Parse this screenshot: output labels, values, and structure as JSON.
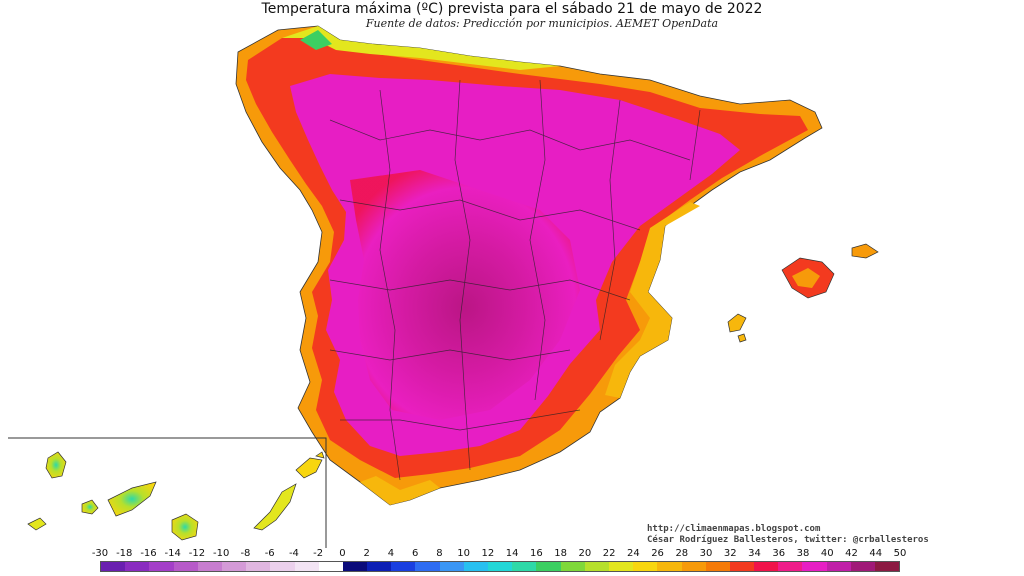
{
  "title": "Temperatura máxima (ºC) prevista para el sábado 21 de mayo de 2022",
  "subtitle": "Fuente de datos: Predicción por municipios. AEMET OpenData",
  "credits": {
    "url": "http://climaenmapas.blogspot.com",
    "author": "César Rodríguez Ballesteros, twitter: @crballesteros"
  },
  "legend": {
    "ticks": [
      "-30",
      "-18",
      "-16",
      "-14",
      "-12",
      "-10",
      "-8",
      "-6",
      "-4",
      "-2",
      "0",
      "2",
      "4",
      "6",
      "8",
      "10",
      "12",
      "14",
      "16",
      "18",
      "20",
      "22",
      "24",
      "26",
      "28",
      "30",
      "32",
      "34",
      "36",
      "38",
      "40",
      "42",
      "44",
      "50"
    ],
    "colors": [
      "#6a1fb0",
      "#8a2cc0",
      "#a43fc8",
      "#b75ac9",
      "#c77dcf",
      "#d49ad7",
      "#e0b6e0",
      "#ebd0ec",
      "#f3e4f4",
      "#ffffff",
      "#0b0b7a",
      "#0d1fb5",
      "#1a3fe0",
      "#2e6cf2",
      "#3a96f5",
      "#28c0f0",
      "#22d7d7",
      "#2ed9a8",
      "#3ccf62",
      "#7fd83a",
      "#b6e02c",
      "#e3e61e",
      "#f8d60f",
      "#f7b70c",
      "#f79a0a",
      "#f57a08",
      "#f33a1f",
      "#f0134a",
      "#ef1c8a",
      "#e71ec4",
      "#c01fa8",
      "#a01a78",
      "#8c1a42"
    ]
  },
  "regions": {
    "peninsula": "Península Ibérica",
    "balearic": "Islas Baleares",
    "canary": "Islas Canarias"
  }
}
